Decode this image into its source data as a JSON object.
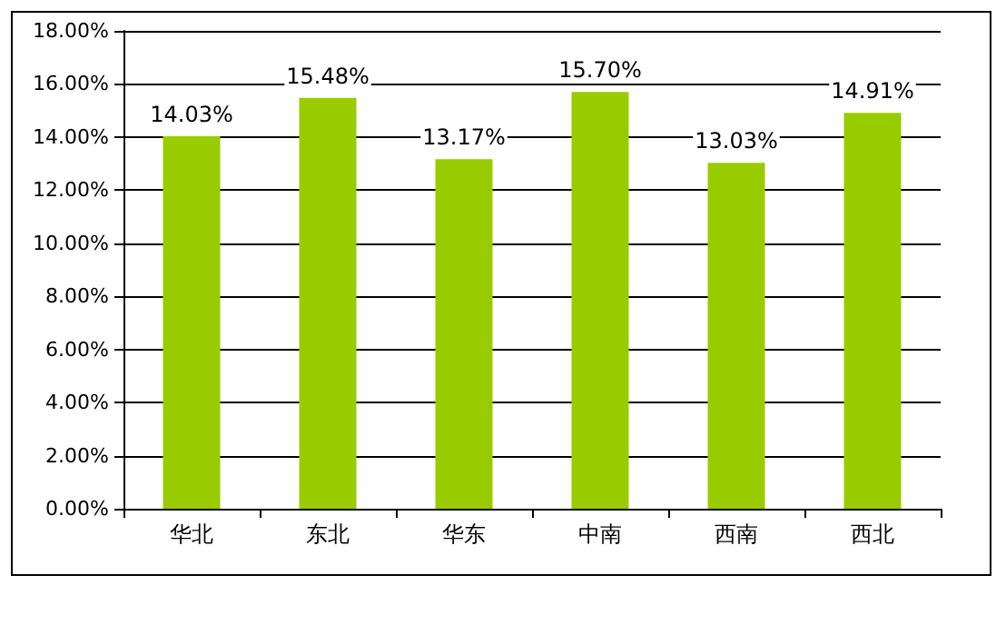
{
  "chart_data": {
    "type": "bar",
    "categories": [
      "华北",
      "东北",
      "华东",
      "中南",
      "西南",
      "西北"
    ],
    "series": [
      {
        "color": "#99cc00",
        "values": [
          14.03,
          15.48,
          13.17,
          15.7,
          13.03,
          14.91
        ],
        "value_labels": [
          "14.03%",
          "15.48%",
          "13.17%",
          "15.70%",
          "13.03%",
          "14.91%"
        ]
      }
    ],
    "ylim": [
      0,
      18
    ],
    "yticks": [
      {
        "value": 0,
        "label": "0.00%"
      },
      {
        "value": 2,
        "label": "2.00%"
      },
      {
        "value": 4,
        "label": "4.00%"
      },
      {
        "value": 6,
        "label": "6.00%"
      },
      {
        "value": 8,
        "label": "8.00%"
      },
      {
        "value": 10,
        "label": "10.00%"
      },
      {
        "value": 12,
        "label": "12.00%"
      },
      {
        "value": 14,
        "label": "14.00%"
      },
      {
        "value": 16,
        "label": "16.00%"
      },
      {
        "value": 18,
        "label": "18.00%"
      }
    ],
    "grid": "y"
  }
}
